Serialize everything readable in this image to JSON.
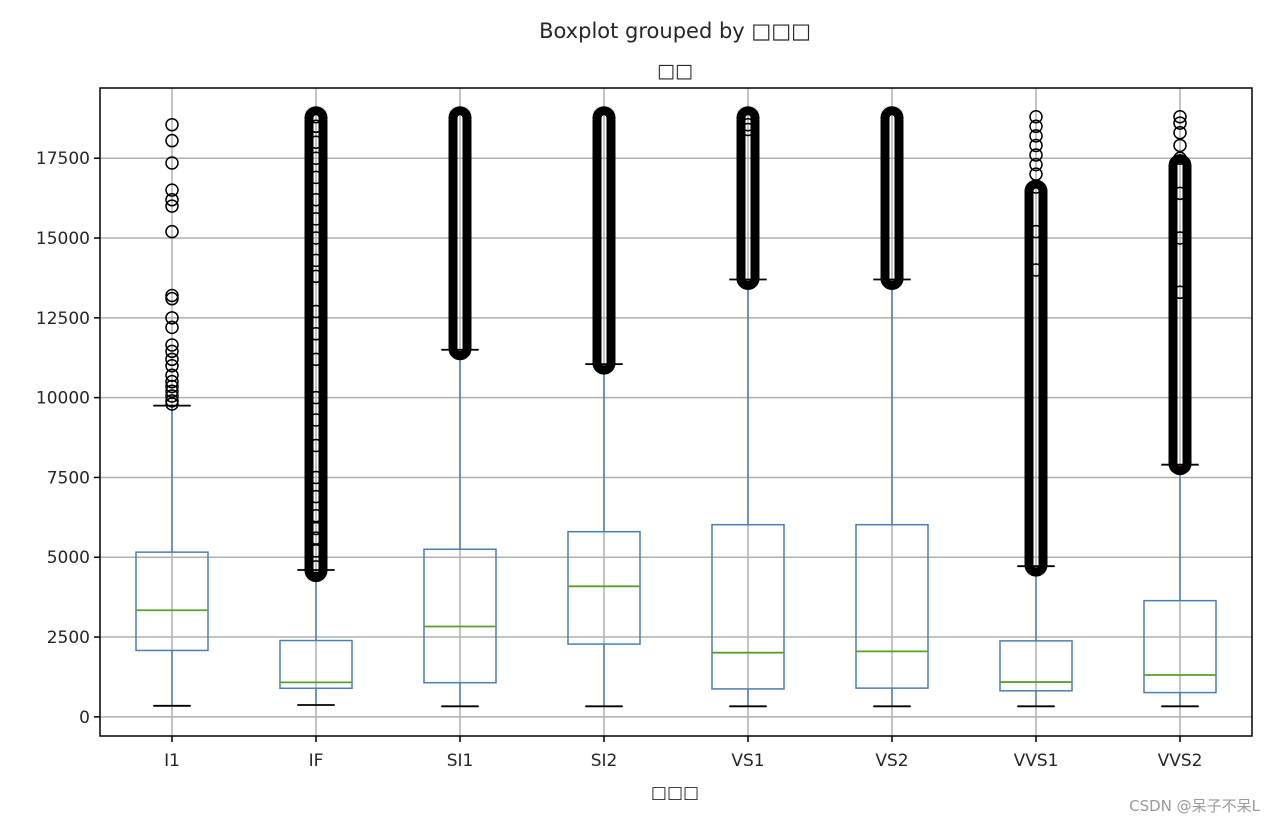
{
  "chart_data": {
    "type": "box",
    "title": "Boxplot grouped by □□□",
    "subtitle": "□□",
    "xlabel": "□□□",
    "ylabel": "",
    "ylim": [
      -600,
      19700
    ],
    "yticks": [
      0,
      2500,
      5000,
      7500,
      10000,
      12500,
      15000,
      17500
    ],
    "grid": true,
    "colors": {
      "box": "#4a7fb5",
      "median": "#5aa02c",
      "cap": "#000000",
      "flier": "#000000",
      "grid": "#b0b0b0"
    },
    "categories": [
      "I1",
      "IF",
      "SI1",
      "SI2",
      "VS1",
      "VS2",
      "VVS1",
      "VVS2"
    ],
    "boxes": [
      {
        "q1": 2080,
        "median": 3340,
        "q3": 5160,
        "whisker_low": 345,
        "whisker_high": 9750,
        "fliers": [
          9800,
          9900,
          10050,
          10200,
          10350,
          10500,
          10700,
          11000,
          11200,
          11450,
          11650,
          12200,
          12500,
          13100,
          13200,
          15200,
          16000,
          16200,
          16500,
          17350,
          18050,
          18550
        ],
        "flier_band": null
      },
      {
        "q1": 895,
        "median": 1080,
        "q3": 2390,
        "whisker_low": 370,
        "whisker_high": 4600,
        "fliers": [
          4700,
          5200,
          5600,
          5900,
          6300,
          6900,
          7500,
          8500,
          9300,
          10000,
          11200,
          12000,
          12700,
          13800,
          14300,
          15000,
          15600,
          16200,
          16900,
          17500,
          18000,
          18500,
          18800
        ],
        "flier_band": [
          4550,
          18800
        ]
      },
      {
        "q1": 1070,
        "median": 2830,
        "q3": 5250,
        "whisker_low": 330,
        "whisker_high": 11500,
        "fliers": [],
        "flier_band": [
          11500,
          18800
        ]
      },
      {
        "q1": 2280,
        "median": 4090,
        "q3": 5800,
        "whisker_low": 330,
        "whisker_high": 11050,
        "fliers": [],
        "flier_band": [
          11050,
          18800
        ]
      },
      {
        "q1": 875,
        "median": 2010,
        "q3": 6020,
        "whisker_low": 330,
        "whisker_high": 13700,
        "fliers": [
          18400,
          18550
        ],
        "flier_band": [
          13700,
          18800
        ]
      },
      {
        "q1": 900,
        "median": 2050,
        "q3": 6020,
        "whisker_low": 330,
        "whisker_high": 13700,
        "fliers": [],
        "flier_band": [
          13700,
          18800
        ]
      },
      {
        "q1": 815,
        "median": 1090,
        "q3": 2380,
        "whisker_low": 330,
        "whisker_high": 4720,
        "fliers": [
          14000,
          15200,
          16600,
          17000,
          17300,
          17600,
          17900,
          18200,
          18500,
          18800
        ],
        "flier_band": [
          4720,
          16500
        ]
      },
      {
        "q1": 760,
        "median": 1310,
        "q3": 3640,
        "whisker_low": 330,
        "whisker_high": 7900,
        "fliers": [
          13300,
          15000,
          16400,
          17500,
          17900,
          18300,
          18600,
          18800
        ],
        "flier_band": [
          7900,
          17300
        ]
      }
    ]
  },
  "watermark": "CSDN @呆子不呆L"
}
